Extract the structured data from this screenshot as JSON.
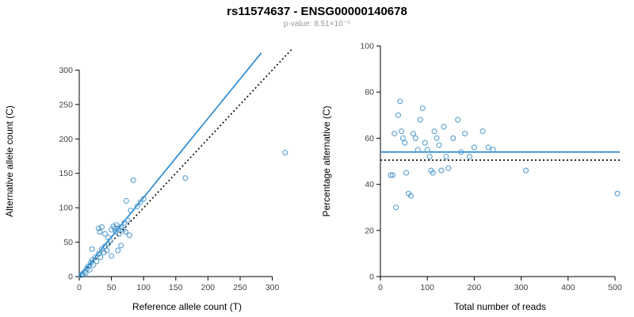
{
  "title": "rs11574637 - ENSG00000140678",
  "subtitle": "p-value: 8.51×10⁻⁵",
  "colors": {
    "point": "#4a97cc",
    "fit_line": "#2388cf",
    "reference_line": "#000000",
    "subtitle_text": "#999999"
  },
  "chart_data": [
    {
      "type": "scatter",
      "title": "",
      "xlabel": "Reference allele count (T)",
      "ylabel": "Alternative allele count (C)",
      "xlim": [
        0,
        335
      ],
      "ylim": [
        0,
        335
      ],
      "xticks": [
        0,
        50,
        100,
        150,
        200,
        250,
        300
      ],
      "yticks": [
        0,
        50,
        100,
        150,
        200,
        250,
        300
      ],
      "grid": false,
      "point_color": "#4a97cc",
      "points": [
        [
          3,
          2
        ],
        [
          5,
          4
        ],
        [
          8,
          7
        ],
        [
          10,
          5
        ],
        [
          12,
          12
        ],
        [
          14,
          15
        ],
        [
          16,
          10
        ],
        [
          18,
          20
        ],
        [
          20,
          24
        ],
        [
          20,
          40
        ],
        [
          22,
          17
        ],
        [
          25,
          28
        ],
        [
          27,
          22
        ],
        [
          30,
          33
        ],
        [
          30,
          70
        ],
        [
          32,
          65
        ],
        [
          33,
          28
        ],
        [
          35,
          40
        ],
        [
          35,
          72
        ],
        [
          38,
          35
        ],
        [
          40,
          44
        ],
        [
          40,
          62
        ],
        [
          43,
          38
        ],
        [
          45,
          48
        ],
        [
          45,
          57
        ],
        [
          48,
          52
        ],
        [
          50,
          30
        ],
        [
          50,
          68
        ],
        [
          53,
          73
        ],
        [
          55,
          70
        ],
        [
          57,
          65
        ],
        [
          58,
          75
        ],
        [
          60,
          38
        ],
        [
          60,
          70
        ],
        [
          62,
          62
        ],
        [
          65,
          45
        ],
        [
          65,
          72
        ],
        [
          68,
          68
        ],
        [
          70,
          78
        ],
        [
          72,
          65
        ],
        [
          73,
          110
        ],
        [
          75,
          82
        ],
        [
          78,
          60
        ],
        [
          80,
          96
        ],
        [
          84,
          140
        ],
        [
          90,
          102
        ],
        [
          95,
          108
        ],
        [
          100,
          113
        ],
        [
          165,
          143
        ],
        [
          320,
          180
        ]
      ],
      "lines": [
        {
          "name": "identity",
          "style": "dotted",
          "color": "#000000",
          "x": [
            0,
            330
          ],
          "y": [
            0,
            330
          ]
        },
        {
          "name": "fit",
          "style": "solid",
          "color": "#2388cf",
          "x": [
            0,
            283
          ],
          "y": [
            0,
            325
          ]
        }
      ]
    },
    {
      "type": "scatter",
      "title": "",
      "xlabel": "Total number of reads",
      "ylabel": "Percentage alternative (C)",
      "xlim": [
        0,
        510
      ],
      "ylim": [
        0,
        100
      ],
      "xticks": [
        0,
        100,
        200,
        300,
        400,
        500
      ],
      "yticks": [
        0,
        20,
        40,
        60,
        80,
        100
      ],
      "grid": false,
      "point_color": "#4a97cc",
      "points": [
        [
          22,
          44
        ],
        [
          26,
          44
        ],
        [
          30,
          62
        ],
        [
          33,
          30
        ],
        [
          38,
          70
        ],
        [
          42,
          76
        ],
        [
          45,
          63
        ],
        [
          48,
          60
        ],
        [
          52,
          58
        ],
        [
          55,
          45
        ],
        [
          60,
          36
        ],
        [
          65,
          35
        ],
        [
          70,
          62
        ],
        [
          75,
          60
        ],
        [
          80,
          55
        ],
        [
          85,
          68
        ],
        [
          90,
          73
        ],
        [
          95,
          58
        ],
        [
          100,
          55
        ],
        [
          105,
          52
        ],
        [
          108,
          46
        ],
        [
          112,
          45
        ],
        [
          115,
          63
        ],
        [
          120,
          60
        ],
        [
          125,
          57
        ],
        [
          130,
          46
        ],
        [
          135,
          65
        ],
        [
          140,
          52
        ],
        [
          145,
          47
        ],
        [
          155,
          60
        ],
        [
          165,
          68
        ],
        [
          172,
          54
        ],
        [
          180,
          62
        ],
        [
          190,
          52
        ],
        [
          200,
          56
        ],
        [
          218,
          63
        ],
        [
          230,
          56
        ],
        [
          240,
          55
        ],
        [
          310,
          46
        ],
        [
          505,
          36
        ]
      ],
      "lines": [
        {
          "name": "mean-percentage",
          "style": "solid",
          "color": "#2388cf",
          "x": [
            0,
            510
          ],
          "y": [
            54,
            54
          ]
        },
        {
          "name": "null-fifty",
          "style": "dotted",
          "color": "#000000",
          "x": [
            0,
            510
          ],
          "y": [
            50.5,
            50.5
          ]
        }
      ]
    }
  ]
}
